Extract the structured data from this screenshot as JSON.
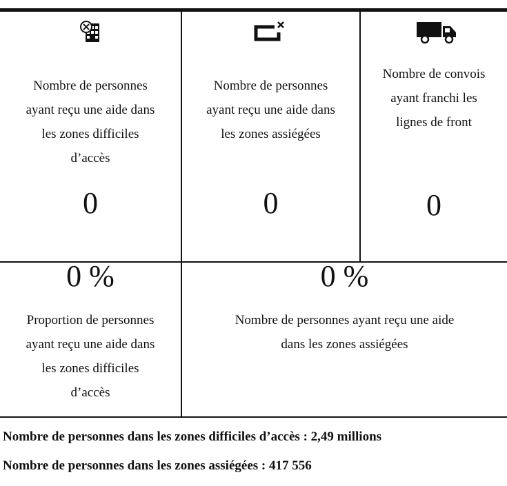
{
  "cells": [
    {
      "label": [
        "Nombre de personnes",
        "ayant reçu une aide dans",
        "les zones difficiles",
        "d’accès"
      ],
      "value": "0"
    },
    {
      "label": [
        "Nombre de personnes",
        "ayant reçu une aide dans",
        "les zones assiégées"
      ],
      "value": "0"
    },
    {
      "label": [
        "Nombre de convois",
        "ayant franchi les",
        "lignes de front"
      ],
      "value": "0"
    },
    {
      "label": [
        "Proportion de personnes",
        "ayant reçu une aide dans",
        "les zones difficiles",
        "d’accès"
      ],
      "value": "0 %"
    },
    {
      "label": [
        "Nombre de personnes ayant reçu une aide",
        "dans les zones assiégées"
      ],
      "value": "0 %"
    }
  ],
  "footer": [
    "Nombre de personnes dans les zones difficiles d’accès : 2,49 millions",
    "Nombre de personnes dans les zones assiégées : 417 556"
  ]
}
